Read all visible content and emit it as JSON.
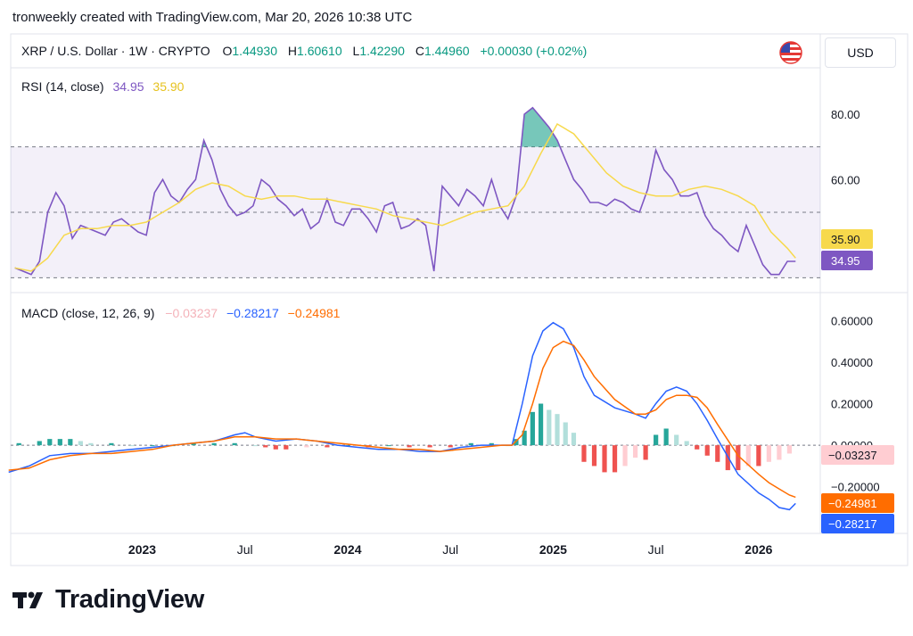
{
  "header": {
    "caption": "tronweekly created with TradingView.com, Mar 20, 2026 10:38 UTC"
  },
  "symbol": {
    "name": "XRP / U.S. Dollar · 1W · CRYPTO",
    "o_label": "O",
    "o": "1.44930",
    "h_label": "H",
    "h": "1.60610",
    "l_label": "L",
    "l": "1.42290",
    "c_label": "C",
    "c": "1.44960",
    "change": "+0.00030 (+0.02%)"
  },
  "currency": "USD",
  "logo_text": "TradingView",
  "colors": {
    "up": "#089981",
    "rsi": "#7e57c2",
    "rsi_ma": "#f7d94c",
    "macd": "#2962ff",
    "signal": "#ff6d00",
    "hist_pos_strong": "#26a69a",
    "hist_pos_weak": "#b2dfdb",
    "hist_neg_strong": "#ef5350",
    "hist_neg_weak": "#ffcdd2",
    "rsi_band": "#7e57c2"
  },
  "chart_data": [
    {
      "type": "line",
      "title": "RSI (14, close)",
      "legend_values": [
        "34.95",
        "35.90"
      ],
      "y_ticks": [
        "80.00",
        "60.00"
      ],
      "ylim": [
        26,
        92
      ],
      "bands": {
        "upper": 70,
        "middle": 50,
        "lower": 30
      },
      "last_labels": [
        "35.90",
        "34.95"
      ],
      "series": [
        {
          "color": "#7e57c2",
          "x": [
            2022.38,
            2022.42,
            2022.46,
            2022.5,
            2022.54,
            2022.58,
            2022.62,
            2022.66,
            2022.7,
            2022.74,
            2022.78,
            2022.82,
            2022.86,
            2022.9,
            2022.94,
            2022.98,
            2023.02,
            2023.06,
            2023.1,
            2023.14,
            2023.18,
            2023.22,
            2023.26,
            2023.3,
            2023.34,
            2023.38,
            2023.42,
            2023.46,
            2023.5,
            2023.54,
            2023.58,
            2023.62,
            2023.66,
            2023.7,
            2023.74,
            2023.78,
            2023.82,
            2023.86,
            2023.9,
            2023.94,
            2023.98,
            2024.02,
            2024.06,
            2024.1,
            2024.14,
            2024.18,
            2024.22,
            2024.26,
            2024.3,
            2024.34,
            2024.38,
            2024.42,
            2024.46,
            2024.5,
            2024.54,
            2024.58,
            2024.62,
            2024.66,
            2024.7,
            2024.74,
            2024.78,
            2024.82,
            2024.86,
            2024.9,
            2024.94,
            2024.98,
            2025.02,
            2025.06,
            2025.1,
            2025.14,
            2025.18,
            2025.22,
            2025.26,
            2025.3,
            2025.34,
            2025.38,
            2025.42,
            2025.46,
            2025.5,
            2025.54,
            2025.58,
            2025.62,
            2025.66,
            2025.7,
            2025.74,
            2025.78,
            2025.82,
            2025.86,
            2025.9,
            2025.94,
            2025.98,
            2026.02,
            2026.06,
            2026.1,
            2026.14,
            2026.18
          ],
          "y": [
            33,
            32,
            31,
            35,
            50,
            56,
            52,
            42,
            46,
            45,
            44,
            43,
            47,
            48,
            46,
            44,
            43,
            56,
            60,
            55,
            53,
            57,
            60,
            72,
            66,
            57,
            52,
            49,
            50,
            52,
            60,
            58,
            54,
            52,
            49,
            51,
            45,
            47,
            54,
            47,
            46,
            51,
            51,
            48,
            44,
            52,
            53,
            45,
            46,
            48,
            46,
            32,
            58,
            55,
            52,
            57,
            55,
            52,
            60,
            52,
            48,
            55,
            80,
            82,
            79,
            76,
            72,
            66,
            60,
            57,
            53,
            53,
            52,
            54,
            53,
            51,
            50,
            57,
            69,
            63,
            60,
            55,
            55,
            56,
            49,
            45,
            43,
            40,
            38,
            46,
            40,
            34,
            31,
            31,
            35,
            35
          ]
        },
        {
          "color": "#f7d94c",
          "x": [
            2022.38,
            2022.46,
            2022.54,
            2022.62,
            2022.7,
            2022.78,
            2022.86,
            2022.94,
            2023.02,
            2023.1,
            2023.18,
            2023.26,
            2023.34,
            2023.42,
            2023.5,
            2023.58,
            2023.66,
            2023.74,
            2023.82,
            2023.9,
            2023.98,
            2024.06,
            2024.14,
            2024.22,
            2024.3,
            2024.38,
            2024.46,
            2024.54,
            2024.62,
            2024.7,
            2024.78,
            2024.86,
            2024.94,
            2025.02,
            2025.1,
            2025.18,
            2025.26,
            2025.34,
            2025.42,
            2025.5,
            2025.58,
            2025.66,
            2025.74,
            2025.82,
            2025.9,
            2025.98,
            2026.06,
            2026.14,
            2026.18
          ],
          "y": [
            33,
            32,
            36,
            43,
            45,
            45,
            46,
            46,
            47,
            50,
            53,
            57,
            59,
            58,
            55,
            54,
            55,
            55,
            54,
            54,
            53,
            52,
            51,
            49,
            48,
            47,
            46,
            48,
            50,
            51,
            52,
            58,
            68,
            77,
            74,
            68,
            62,
            58,
            56,
            55,
            55,
            57,
            58,
            57,
            55,
            52,
            44,
            39,
            36
          ]
        }
      ]
    },
    {
      "type": "line",
      "title": "MACD (close, 12, 26, 9)",
      "legend_values": [
        "−0.03237",
        "−0.28217",
        "−0.24981"
      ],
      "y_ticks": [
        "0.60000",
        "0.40000",
        "0.20000",
        "0.00000",
        "−0.20000"
      ],
      "ylim": [
        -0.39,
        0.64
      ],
      "last_labels": [
        "−0.03237",
        "−0.24981",
        "−0.28217"
      ],
      "series": [
        {
          "name": "MACD",
          "color": "#2962ff",
          "x": [
            2022.35,
            2022.45,
            2022.55,
            2022.65,
            2022.75,
            2022.85,
            2022.95,
            2023.05,
            2023.15,
            2023.25,
            2023.35,
            2023.45,
            2023.5,
            2023.55,
            2023.65,
            2023.75,
            2023.85,
            2023.95,
            2024.05,
            2024.15,
            2024.25,
            2024.35,
            2024.45,
            2024.55,
            2024.65,
            2024.75,
            2024.8,
            2024.85,
            2024.9,
            2024.95,
            2025.0,
            2025.05,
            2025.1,
            2025.15,
            2025.2,
            2025.3,
            2025.4,
            2025.45,
            2025.5,
            2025.55,
            2025.6,
            2025.65,
            2025.7,
            2025.75,
            2025.8,
            2025.9,
            2026.0,
            2026.05,
            2026.1,
            2026.15,
            2026.18
          ],
          "y": [
            -0.13,
            -0.1,
            -0.05,
            -0.04,
            -0.04,
            -0.03,
            -0.02,
            -0.01,
            0.0,
            0.01,
            0.02,
            0.05,
            0.06,
            0.04,
            0.02,
            0.03,
            0.02,
            0.0,
            -0.01,
            -0.02,
            -0.02,
            -0.03,
            -0.03,
            -0.01,
            0.0,
            0.0,
            0.0,
            0.2,
            0.43,
            0.55,
            0.59,
            0.56,
            0.47,
            0.33,
            0.24,
            0.18,
            0.15,
            0.13,
            0.2,
            0.26,
            0.28,
            0.26,
            0.2,
            0.12,
            0.03,
            -0.14,
            -0.23,
            -0.26,
            -0.3,
            -0.31,
            -0.28
          ]
        },
        {
          "name": "Signal",
          "color": "#ff6d00",
          "x": [
            2022.35,
            2022.45,
            2022.55,
            2022.65,
            2022.75,
            2022.85,
            2022.95,
            2023.05,
            2023.15,
            2023.25,
            2023.35,
            2023.45,
            2023.55,
            2023.65,
            2023.75,
            2023.85,
            2023.95,
            2024.05,
            2024.15,
            2024.25,
            2024.35,
            2024.45,
            2024.55,
            2024.65,
            2024.75,
            2024.8,
            2024.85,
            2024.9,
            2024.95,
            2025.0,
            2025.05,
            2025.1,
            2025.15,
            2025.2,
            2025.3,
            2025.4,
            2025.45,
            2025.5,
            2025.55,
            2025.6,
            2025.65,
            2025.7,
            2025.75,
            2025.8,
            2025.9,
            2026.0,
            2026.05,
            2026.1,
            2026.15,
            2026.18
          ],
          "y": [
            -0.12,
            -0.11,
            -0.07,
            -0.05,
            -0.04,
            -0.04,
            -0.03,
            -0.02,
            0.0,
            0.01,
            0.02,
            0.04,
            0.04,
            0.03,
            0.03,
            0.02,
            0.01,
            0.0,
            -0.01,
            -0.02,
            -0.02,
            -0.03,
            -0.02,
            -0.01,
            0.0,
            0.0,
            0.05,
            0.2,
            0.37,
            0.47,
            0.5,
            0.48,
            0.41,
            0.33,
            0.22,
            0.15,
            0.15,
            0.17,
            0.22,
            0.24,
            0.24,
            0.23,
            0.18,
            0.1,
            -0.05,
            -0.14,
            -0.18,
            -0.21,
            -0.24,
            -0.25
          ]
        },
        {
          "name": "Histogram",
          "color": "#26a69a",
          "x": [
            2022.4,
            2022.5,
            2022.55,
            2022.6,
            2022.65,
            2022.7,
            2022.75,
            2022.85,
            2022.95,
            2023.05,
            2023.15,
            2023.25,
            2023.35,
            2023.45,
            2023.55,
            2023.6,
            2023.65,
            2023.7,
            2023.8,
            2023.9,
            2024.0,
            2024.1,
            2024.2,
            2024.3,
            2024.4,
            2024.5,
            2024.6,
            2024.7,
            2024.78,
            2024.82,
            2024.86,
            2024.9,
            2024.94,
            2024.98,
            2025.02,
            2025.06,
            2025.1,
            2025.15,
            2025.2,
            2025.25,
            2025.3,
            2025.35,
            2025.4,
            2025.45,
            2025.5,
            2025.55,
            2025.6,
            2025.65,
            2025.7,
            2025.75,
            2025.8,
            2025.85,
            2025.9,
            2025.95,
            2026.0,
            2026.05,
            2026.1,
            2026.15
          ],
          "y": [
            0.01,
            0.02,
            0.03,
            0.03,
            0.03,
            0.02,
            0.01,
            0.01,
            0.0,
            0.0,
            0.0,
            0.01,
            0.01,
            0.01,
            0.0,
            -0.01,
            -0.02,
            -0.02,
            -0.01,
            -0.01,
            0.0,
            -0.01,
            0.0,
            -0.01,
            -0.01,
            -0.01,
            0.01,
            0.01,
            0.0,
            0.03,
            0.07,
            0.16,
            0.2,
            0.17,
            0.15,
            0.11,
            0.06,
            -0.08,
            -0.1,
            -0.13,
            -0.13,
            -0.1,
            -0.06,
            -0.07,
            0.05,
            0.08,
            0.05,
            0.02,
            -0.02,
            -0.05,
            -0.08,
            -0.12,
            -0.12,
            -0.1,
            -0.1,
            -0.08,
            -0.07,
            -0.04
          ]
        }
      ]
    }
  ],
  "x_axis": {
    "xlim": [
      2022.36,
      2026.3
    ],
    "ticks": [
      {
        "label": "2023",
        "x": 2023.0,
        "bold": true
      },
      {
        "label": "Jul",
        "x": 2023.5,
        "bold": false
      },
      {
        "label": "2024",
        "x": 2024.0,
        "bold": true
      },
      {
        "label": "Jul",
        "x": 2024.5,
        "bold": false
      },
      {
        "label": "2025",
        "x": 2025.0,
        "bold": true
      },
      {
        "label": "Jul",
        "x": 2025.5,
        "bold": false
      },
      {
        "label": "2026",
        "x": 2026.0,
        "bold": true
      }
    ]
  }
}
